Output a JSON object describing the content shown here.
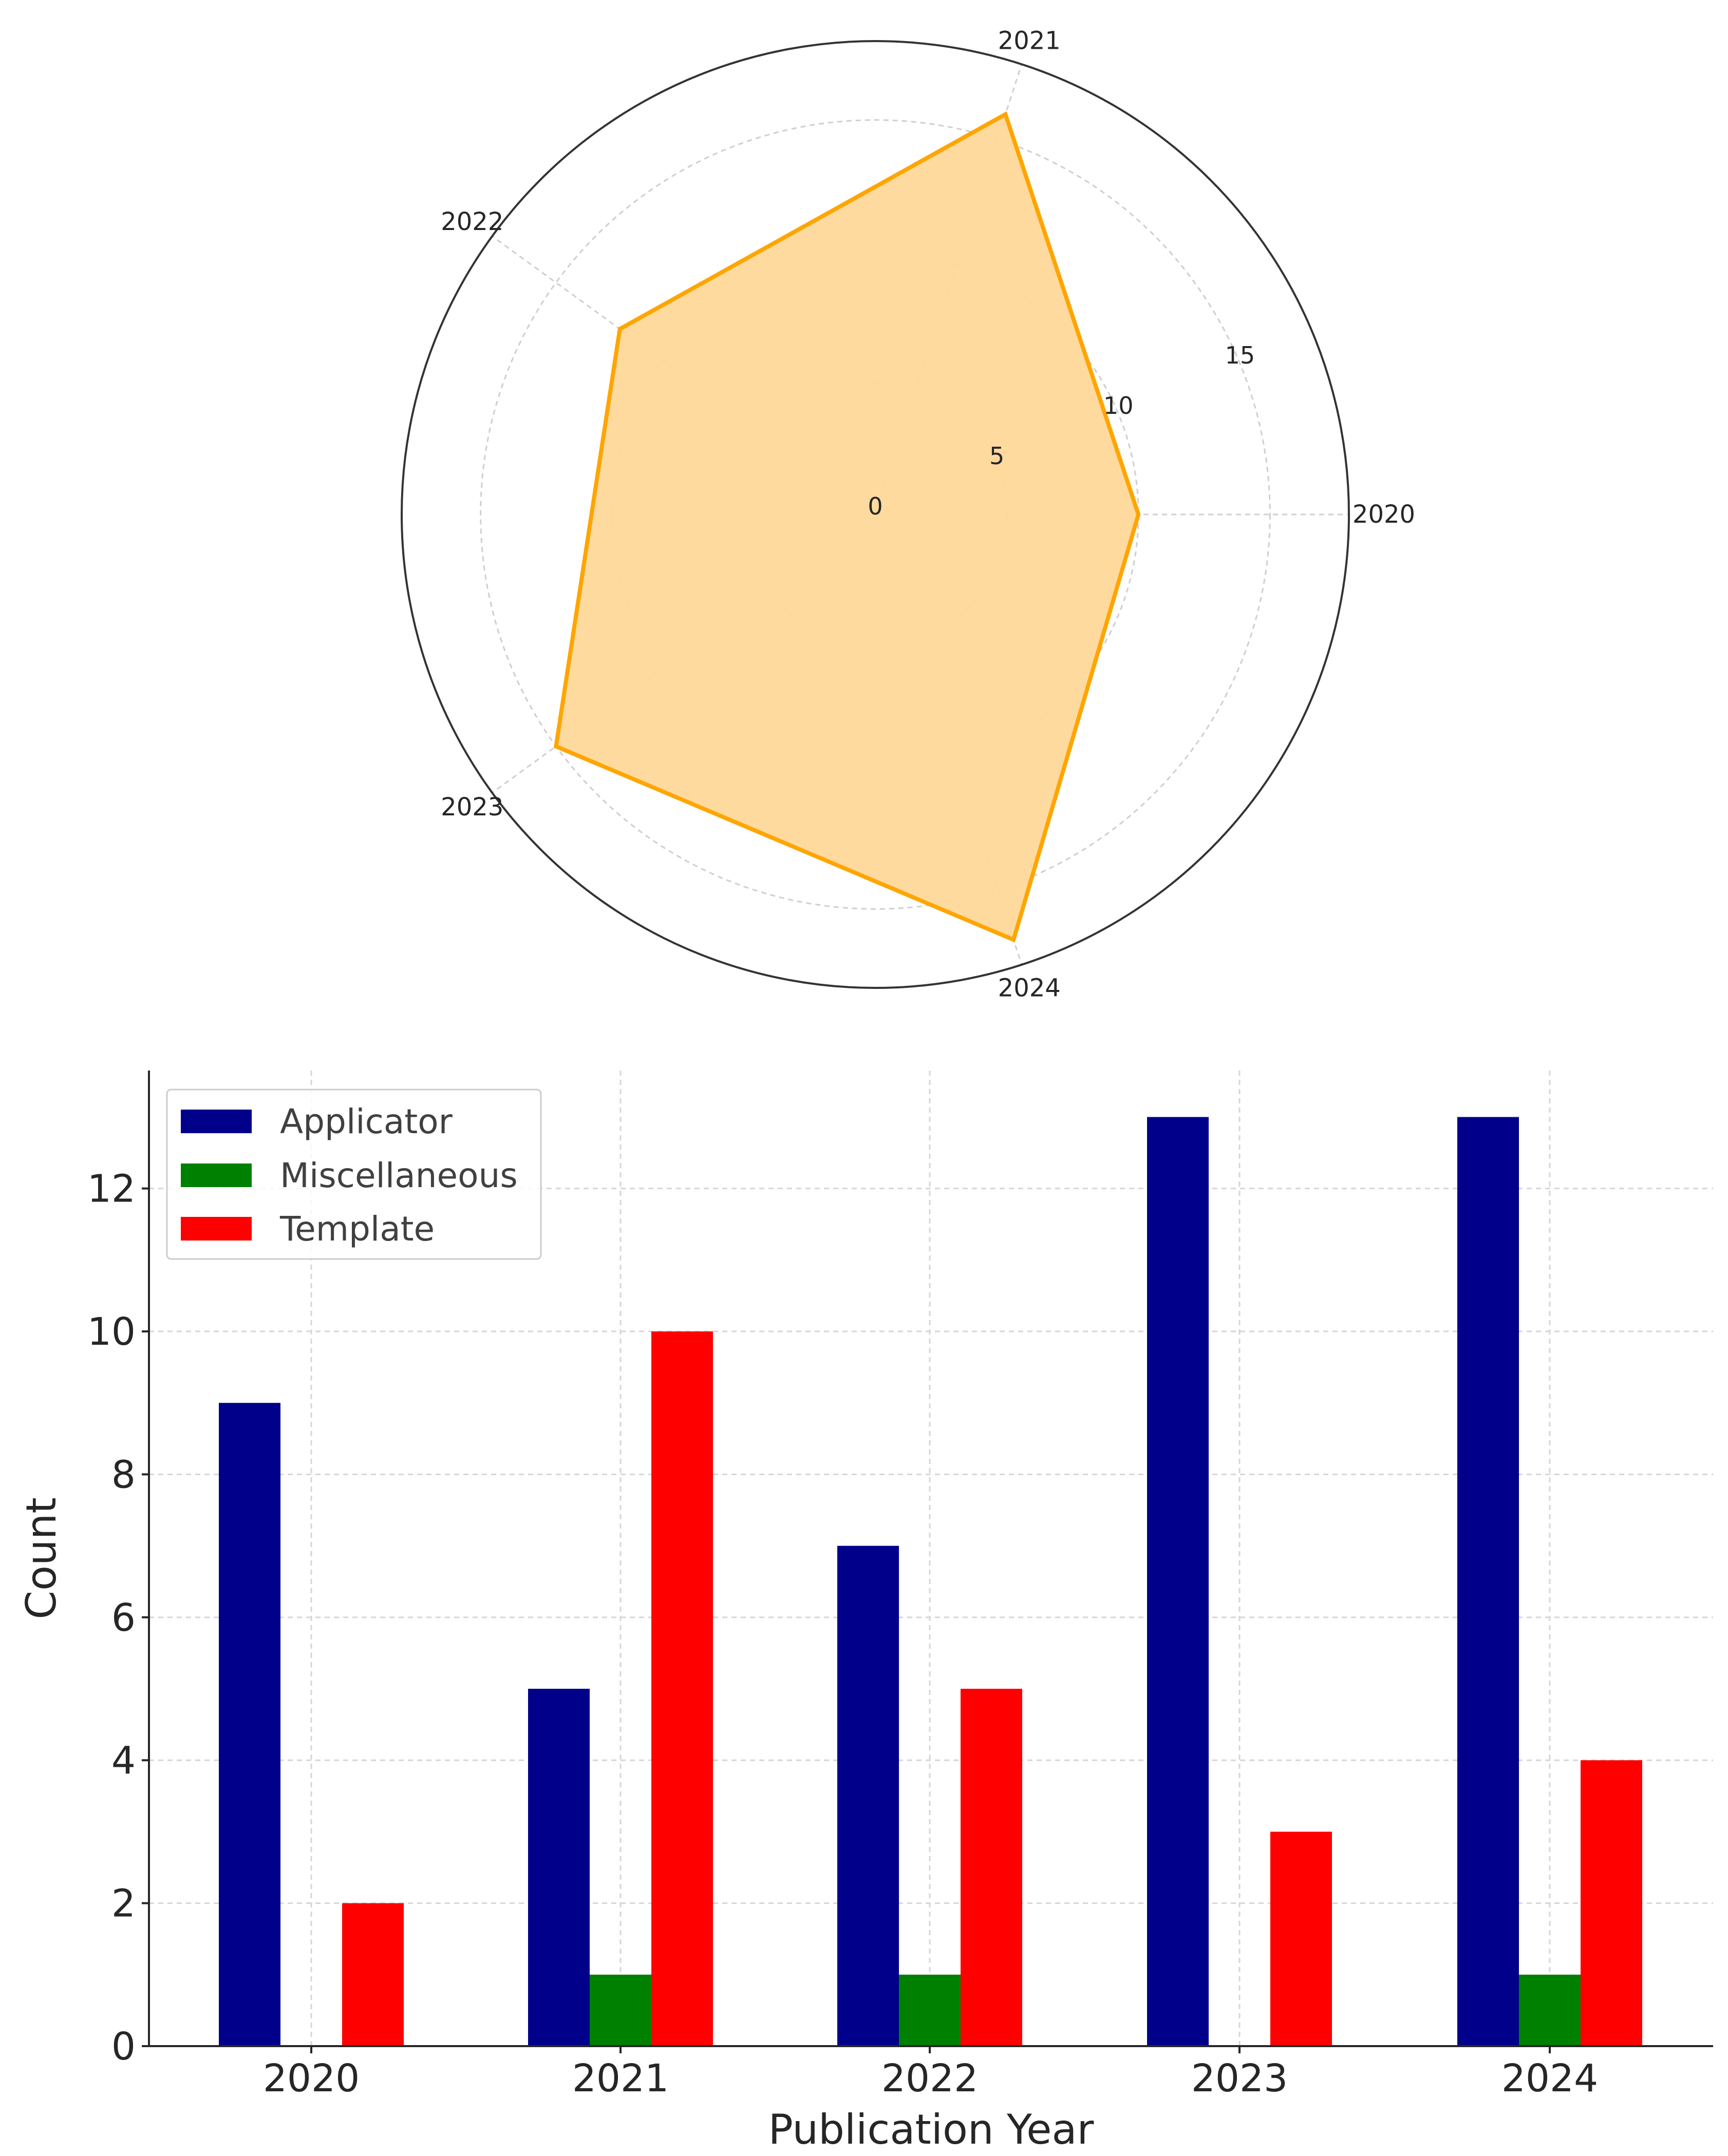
{
  "chart_data": [
    {
      "type": "radar",
      "categories": [
        "2020",
        "2021",
        "2022",
        "2023",
        "2024"
      ],
      "values": [
        10,
        16,
        12,
        15,
        17
      ],
      "r_ticks": [
        "0",
        "5",
        "10",
        "15"
      ],
      "rlim": [
        0,
        18
      ],
      "grid": true,
      "colors": {
        "line": "#FFA500",
        "fill": "#FFD89A"
      }
    },
    {
      "type": "bar",
      "categories": [
        "2020",
        "2021",
        "2022",
        "2023",
        "2024"
      ],
      "series": [
        {
          "name": "Applicator",
          "values": [
            9,
            5,
            7,
            13,
            13
          ],
          "color": "#00008B"
        },
        {
          "name": "Miscellaneous",
          "values": [
            0,
            1,
            1,
            0,
            1
          ],
          "color": "#008000"
        },
        {
          "name": "Template",
          "values": [
            2,
            10,
            5,
            3,
            4
          ],
          "color": "#FF0000"
        }
      ],
      "xlabel": "Publication Year",
      "ylabel": "Count",
      "y_ticks": [
        "0",
        "2",
        "4",
        "6",
        "8",
        "10",
        "12"
      ],
      "ylim": [
        0,
        13.65
      ],
      "grid": true,
      "legend": "upper-left"
    }
  ]
}
